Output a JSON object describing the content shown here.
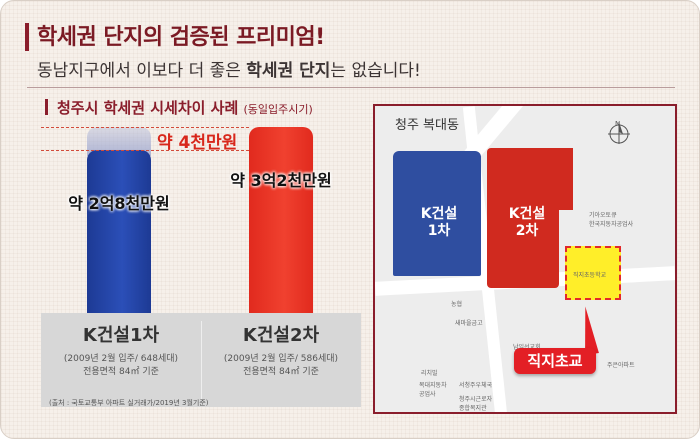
{
  "headline": "학세권 단지의 검증된 프리미엄!",
  "subline": {
    "prefix": "동남지구에서 이보다 더 좋은 ",
    "bold": "학세권 단지",
    "suffix": "는 없습니다!"
  },
  "chart_title": {
    "main": "청주시 학세권 시세차이 사례",
    "note": "(동일입주시기)"
  },
  "chart_data": {
    "type": "bar",
    "categories": [
      "K건설1차",
      "K건설2차"
    ],
    "values": [
      28000,
      32000
    ],
    "value_labels": [
      "약 2억8천만원",
      "약 3억2천만원"
    ],
    "difference_label": "약 4천만원",
    "ylim": [
      0,
      33000
    ],
    "colors": [
      "#1d3a94",
      "#e12a1e"
    ]
  },
  "columns": [
    {
      "name": "K건설1차",
      "line1": "(2009년 2월 입주/ 648세대)",
      "line2": "전용면적 84㎡ 기준"
    },
    {
      "name": "K건설2차",
      "line1": "(2009년 2월 입주/ 586세대)",
      "line2": "전용면적 84㎡ 기준"
    }
  ],
  "source": "(출처 : 국토교통부 아파트 실거래가/2019년 3월기준)",
  "map": {
    "title": "청주 복대동",
    "block1_label": "K건설\n1차",
    "block2_label": "K건설\n2차",
    "school_label": "직지초등학교",
    "callout": "직지초교",
    "places": [
      "기아오토큐\n한국지동자공업사",
      "농협",
      "새마을금고",
      "남일선교회",
      "리치빌",
      "복대지동차\n공업사",
      "서청주우체국",
      "청주시근로자\n종합복지관",
      "주은아파트"
    ]
  },
  "colors": {
    "accent": "#8a1d2b",
    "blue": "#1d3a94",
    "red": "#e12a1e",
    "school_yellow": "#ffee29"
  }
}
